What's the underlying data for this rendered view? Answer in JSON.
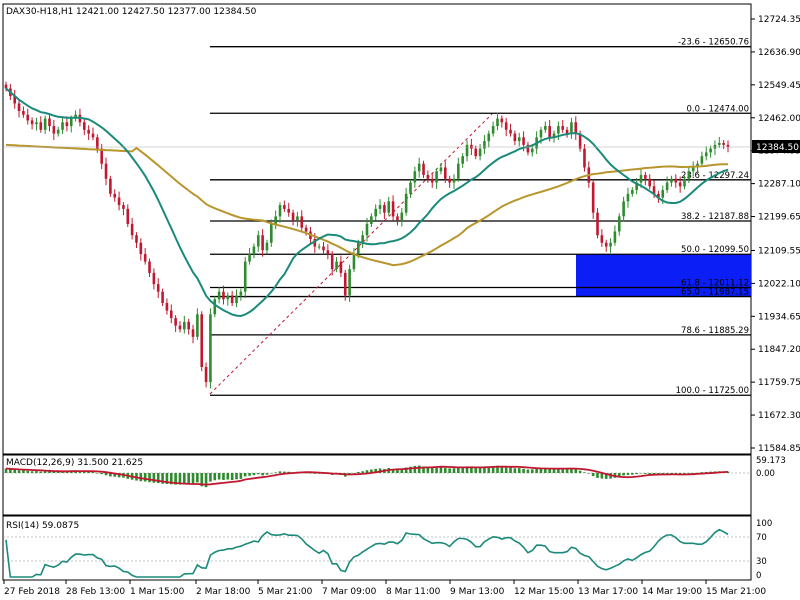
{
  "header": {
    "symbol": "DAX30-H18,H1",
    "ohlc": "12421.00 12427.50 12377.00 12384.50"
  },
  "colors": {
    "bull": "#2e8b2e",
    "bear": "#c01830",
    "ma_fast": "#1a8a7a",
    "ma_slow": "#b8962c",
    "fib_zone": "#0a1ef5",
    "macd_hist": "#2e8b2e",
    "macd_signal": "#c01830",
    "rsi": "#1a8a7a"
  },
  "price_axis": {
    "labels": [
      "12724.35",
      "12636.90",
      "12549.45",
      "12462.00",
      "12374.55",
      "12287.10",
      "12199.65",
      "12109.55",
      "12022.10",
      "11934.65",
      "11847.20",
      "11759.75",
      "11672.30",
      "11584.85"
    ],
    "current_price": "12384.50"
  },
  "fib_levels": [
    {
      "label": "-23.6 - 12650.76",
      "price": 12650.76
    },
    {
      "label": "0.0 - 12474.00",
      "price": 12474.0
    },
    {
      "label": "23.6 - 12297.24",
      "price": 12297.24
    },
    {
      "label": "38.2 - 12187.88",
      "price": 12187.88
    },
    {
      "label": "50.0 - 12099.50",
      "price": 12099.5
    },
    {
      "label": "61.8 - 12011.12",
      "price": 12011.12
    },
    {
      "label": "65.0 - 11987.15",
      "price": 11987.15
    },
    {
      "label": "78.6 - 11885.29",
      "price": 11885.29
    },
    {
      "label": "100.0 - 11725.00",
      "price": 11725.0
    }
  ],
  "macd": {
    "label": "MACD(12,26,9) 31.500 21.625",
    "axis": [
      "59.173",
      "0.00"
    ]
  },
  "rsi": {
    "label": "RSI(14) 59.0875",
    "axis": [
      "100",
      "70",
      "30",
      "0"
    ]
  },
  "time_axis": [
    "27 Feb 2018",
    "28 Feb 13:00",
    "1 Mar 15:00",
    "2 Mar 18:00",
    "5 Mar 21:00",
    "7 Mar 09:00",
    "8 Mar 11:00",
    "9 Mar 13:00",
    "12 Mar 15:00",
    "13 Mar 17:00",
    "14 Mar 19:00",
    "15 Mar 21:00"
  ],
  "chart_data": {
    "type": "candlestick",
    "ylim": [
      11584.85,
      12760
    ],
    "series_close": [
      12540,
      12520,
      12500,
      12480,
      12470,
      12455,
      12445,
      12450,
      12430,
      12460,
      12440,
      12420,
      12430,
      12450,
      12440,
      12460,
      12470,
      12450,
      12430,
      12420,
      12410,
      12380,
      12340,
      12300,
      12260,
      12250,
      12230,
      12220,
      12180,
      12150,
      12130,
      12100,
      12080,
      12050,
      12020,
      12000,
      11970,
      11950,
      11930,
      11910,
      11900,
      11920,
      11900,
      11880,
      11940,
      11800,
      11760,
      11940,
      11980,
      12000,
      11980,
      11990,
      11970,
      11990,
      12000,
      12080,
      12100,
      12120,
      12150,
      12110,
      12130,
      12180,
      12200,
      12230,
      12220,
      12210,
      12190,
      12200,
      12170,
      12160,
      12140,
      12120,
      12120,
      12110,
      12100,
      12060,
      12080,
      12050,
      11990,
      12060,
      12100,
      12130,
      12150,
      12180,
      12200,
      12220,
      12230,
      12210,
      12240,
      12200,
      12190,
      12210,
      12260,
      12290,
      12320,
      12340,
      12310,
      12300,
      12290,
      12320,
      12330,
      12300,
      12290,
      12300,
      12340,
      12360,
      12390,
      12380,
      12360,
      12380,
      12400,
      12420,
      12440,
      12460,
      12450,
      12430,
      12420,
      12400,
      12410,
      12390,
      12370,
      12380,
      12410,
      12430,
      12440,
      12410,
      12420,
      12440,
      12430,
      12420,
      12450,
      12420,
      12380,
      12330,
      12290,
      12210,
      12150,
      12130,
      12120,
      12130,
      12160,
      12200,
      12240,
      12260,
      12270,
      12290,
      12310,
      12300,
      12280,
      12260,
      12250,
      12270,
      12290,
      12300,
      12290,
      12280,
      12300,
      12320,
      12330,
      12340,
      12360,
      12370,
      12380,
      12390,
      12395,
      12390,
      12384.5
    ]
  }
}
